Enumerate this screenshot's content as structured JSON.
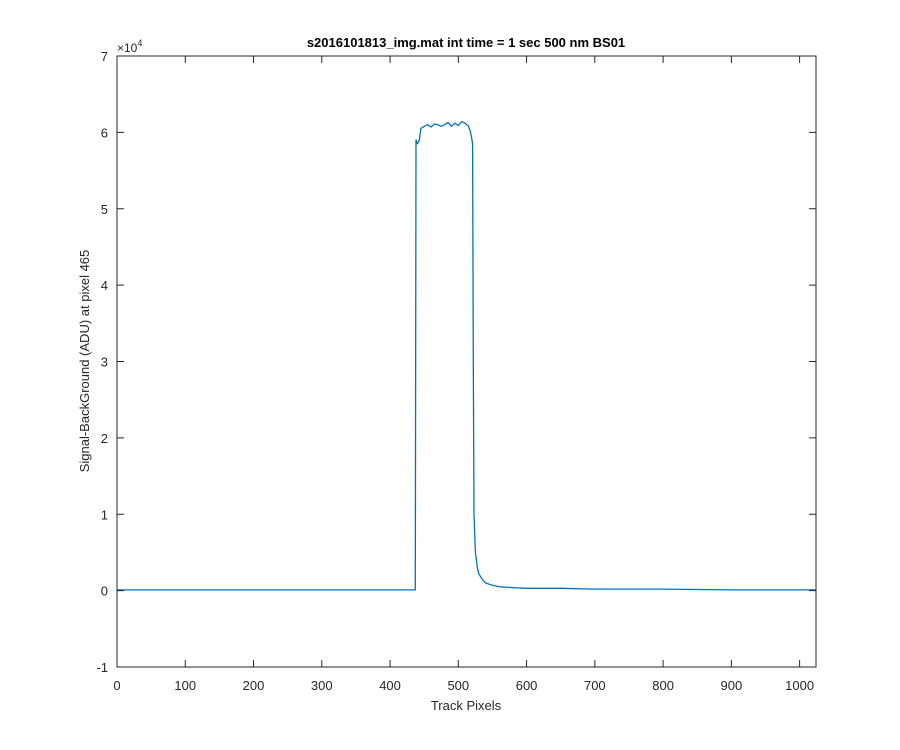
{
  "chart_data": {
    "type": "line",
    "title": "s2016101813_img.mat int time = 1 sec  500 nm BS01",
    "xlabel": "Track Pixels",
    "ylabel": "Signal-BackGround (ADU) at pixel 465",
    "y_exponent_label": "×10",
    "y_exponent_power": "4",
    "y_multiplier": 10000,
    "xlim": [
      0,
      1024
    ],
    "ylim": [
      -1,
      7
    ],
    "x_ticks": [
      0,
      100,
      200,
      300,
      400,
      500,
      600,
      700,
      800,
      900,
      1000
    ],
    "x_tick_labels": [
      "0",
      "100",
      "200",
      "300",
      "400",
      "500",
      "600",
      "700",
      "800",
      "900",
      "1000"
    ],
    "y_ticks": [
      -1,
      0,
      1,
      2,
      3,
      4,
      5,
      6,
      7
    ],
    "y_tick_labels": [
      "-1",
      "0",
      "1",
      "2",
      "3",
      "4",
      "5",
      "6",
      "7"
    ],
    "grid": false,
    "line_color": "#0072BD",
    "series": [
      {
        "x": [
          0,
          50,
          100,
          150,
          200,
          250,
          300,
          350,
          400,
          437,
          438,
          440,
          443,
          445,
          450,
          455,
          460,
          465,
          470,
          475,
          480,
          485,
          490,
          495,
          500,
          505,
          510,
          515,
          518,
          520,
          521,
          522,
          523,
          525,
          528,
          530,
          535,
          540,
          550,
          560,
          580,
          600,
          650,
          700,
          800,
          900,
          1000,
          1024
        ],
        "y": [
          0.01,
          0.01,
          0.01,
          0.01,
          0.01,
          0.01,
          0.01,
          0.01,
          0.01,
          0.01,
          5.9,
          5.85,
          5.9,
          6.05,
          6.08,
          6.1,
          6.07,
          6.11,
          6.1,
          6.08,
          6.1,
          6.13,
          6.08,
          6.12,
          6.09,
          6.14,
          6.12,
          6.08,
          6.0,
          5.9,
          5.85,
          3.0,
          1.0,
          0.5,
          0.3,
          0.22,
          0.15,
          0.1,
          0.07,
          0.05,
          0.04,
          0.03,
          0.03,
          0.02,
          0.02,
          0.01,
          0.01,
          0.01
        ]
      }
    ]
  }
}
